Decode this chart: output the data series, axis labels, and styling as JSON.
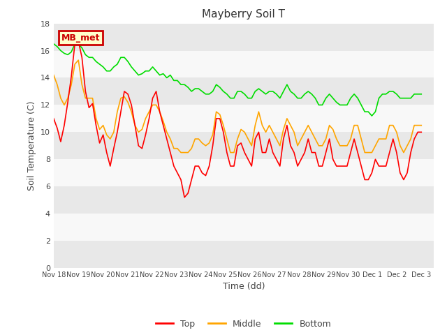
{
  "title": "Mayberry Soil T",
  "xlabel": "Time (dd)",
  "ylabel": "Soil Temperature (C)",
  "ylim": [
    0,
    18
  ],
  "yticks": [
    0,
    2,
    4,
    6,
    8,
    10,
    12,
    14,
    16,
    18
  ],
  "xlim": [
    0,
    15.5
  ],
  "xtick_positions": [
    0,
    1,
    2,
    3,
    4,
    5,
    6,
    7,
    8,
    9,
    10,
    11,
    12,
    13,
    14,
    15
  ],
  "xtick_labels": [
    "Nov 18",
    "Nov 19",
    "Nov 20",
    "Nov 21",
    "Nov 22",
    "Nov 23",
    "Nov 24",
    "Nov 25",
    "Nov 26",
    "Nov 27",
    "Nov 28",
    "Nov 29",
    "Nov 30",
    "Dec 1",
    "Dec 2",
    "Dec 3"
  ],
  "line_colors": {
    "top": "#FF0000",
    "middle": "#FFA500",
    "bottom": "#00DD00"
  },
  "legend_label_box": "MB_met",
  "legend_box_facecolor": "#FFFFCC",
  "legend_box_edgecolor": "#CC0000",
  "legend_box_textcolor": "#CC0000",
  "background_color": "#FFFFFF",
  "band_colors": [
    "#E8E8E8",
    "#F8F8F8"
  ],
  "top_data": [
    11.0,
    10.3,
    9.3,
    10.5,
    12.2,
    14.1,
    16.5,
    16.7,
    15.5,
    13.0,
    11.8,
    12.1,
    10.5,
    9.2,
    9.8,
    8.5,
    7.5,
    8.8,
    10.0,
    11.5,
    13.0,
    12.8,
    12.0,
    10.5,
    9.0,
    8.8,
    9.8,
    11.0,
    12.5,
    13.0,
    11.5,
    10.5,
    9.5,
    8.5,
    7.5,
    7.0,
    6.5,
    5.2,
    5.5,
    6.5,
    7.5,
    7.5,
    7.0,
    6.8,
    7.5,
    9.0,
    11.0,
    11.0,
    10.0,
    8.5,
    7.5,
    7.5,
    9.0,
    9.2,
    8.5,
    8.0,
    7.5,
    9.5,
    10.0,
    8.5,
    8.5,
    9.5,
    8.5,
    8.0,
    7.5,
    9.5,
    10.5,
    9.0,
    8.5,
    7.5,
    8.0,
    8.5,
    9.5,
    8.5,
    8.5,
    7.5,
    7.5,
    8.5,
    9.5,
    8.0,
    7.5,
    7.5,
    7.5,
    7.5,
    8.5,
    9.5,
    8.5,
    7.5,
    6.5,
    6.5,
    7.0,
    8.0,
    7.5,
    7.5,
    7.5,
    8.5,
    9.5,
    8.5,
    7.0,
    6.5,
    7.0,
    8.5,
    9.5,
    10.0,
    10.0
  ],
  "middle_data": [
    14.2,
    13.5,
    12.5,
    12.0,
    12.5,
    13.5,
    15.0,
    15.3,
    13.5,
    12.5,
    12.5,
    12.5,
    11.0,
    10.2,
    10.5,
    9.8,
    9.5,
    10.0,
    11.5,
    12.5,
    12.6,
    12.2,
    11.5,
    10.5,
    10.0,
    10.2,
    11.0,
    11.5,
    12.0,
    12.0,
    11.5,
    10.8,
    10.0,
    9.5,
    8.8,
    8.8,
    8.5,
    8.5,
    8.5,
    8.8,
    9.5,
    9.5,
    9.2,
    9.0,
    9.2,
    9.8,
    11.5,
    11.3,
    10.5,
    9.5,
    8.5,
    8.5,
    9.5,
    10.2,
    10.0,
    9.5,
    9.0,
    10.5,
    11.5,
    10.5,
    10.0,
    10.5,
    10.0,
    9.5,
    9.0,
    10.2,
    11.0,
    10.5,
    10.0,
    9.0,
    9.5,
    10.0,
    10.5,
    10.0,
    9.5,
    9.0,
    9.0,
    9.5,
    10.5,
    10.2,
    9.5,
    9.0,
    9.0,
    9.0,
    9.5,
    10.5,
    10.5,
    9.5,
    8.5,
    8.5,
    8.5,
    9.0,
    9.5,
    9.5,
    9.5,
    10.5,
    10.5,
    10.0,
    9.0,
    8.5,
    9.0,
    9.5,
    10.5,
    10.5,
    10.5
  ],
  "bottom_data": [
    16.5,
    16.3,
    16.0,
    15.8,
    15.7,
    15.9,
    16.5,
    16.5,
    16.2,
    15.7,
    15.5,
    15.5,
    15.2,
    15.0,
    14.8,
    14.5,
    14.5,
    14.8,
    15.0,
    15.5,
    15.5,
    15.2,
    14.8,
    14.5,
    14.2,
    14.3,
    14.5,
    14.5,
    14.8,
    14.5,
    14.2,
    14.3,
    14.0,
    14.2,
    13.8,
    13.8,
    13.5,
    13.5,
    13.3,
    13.0,
    13.2,
    13.2,
    13.0,
    12.8,
    12.8,
    13.0,
    13.5,
    13.3,
    13.0,
    12.8,
    12.5,
    12.5,
    13.0,
    13.0,
    12.8,
    12.5,
    12.5,
    13.0,
    13.2,
    13.0,
    12.8,
    13.0,
    13.0,
    12.8,
    12.5,
    13.0,
    13.5,
    13.0,
    12.8,
    12.5,
    12.5,
    12.8,
    13.0,
    12.8,
    12.5,
    12.0,
    12.0,
    12.5,
    12.8,
    12.5,
    12.2,
    12.0,
    12.0,
    12.0,
    12.5,
    12.8,
    12.5,
    12.0,
    11.5,
    11.5,
    11.2,
    11.5,
    12.5,
    12.8,
    12.8,
    13.0,
    13.0,
    12.8,
    12.5,
    12.5,
    12.5,
    12.5,
    12.8,
    12.8,
    12.8
  ]
}
